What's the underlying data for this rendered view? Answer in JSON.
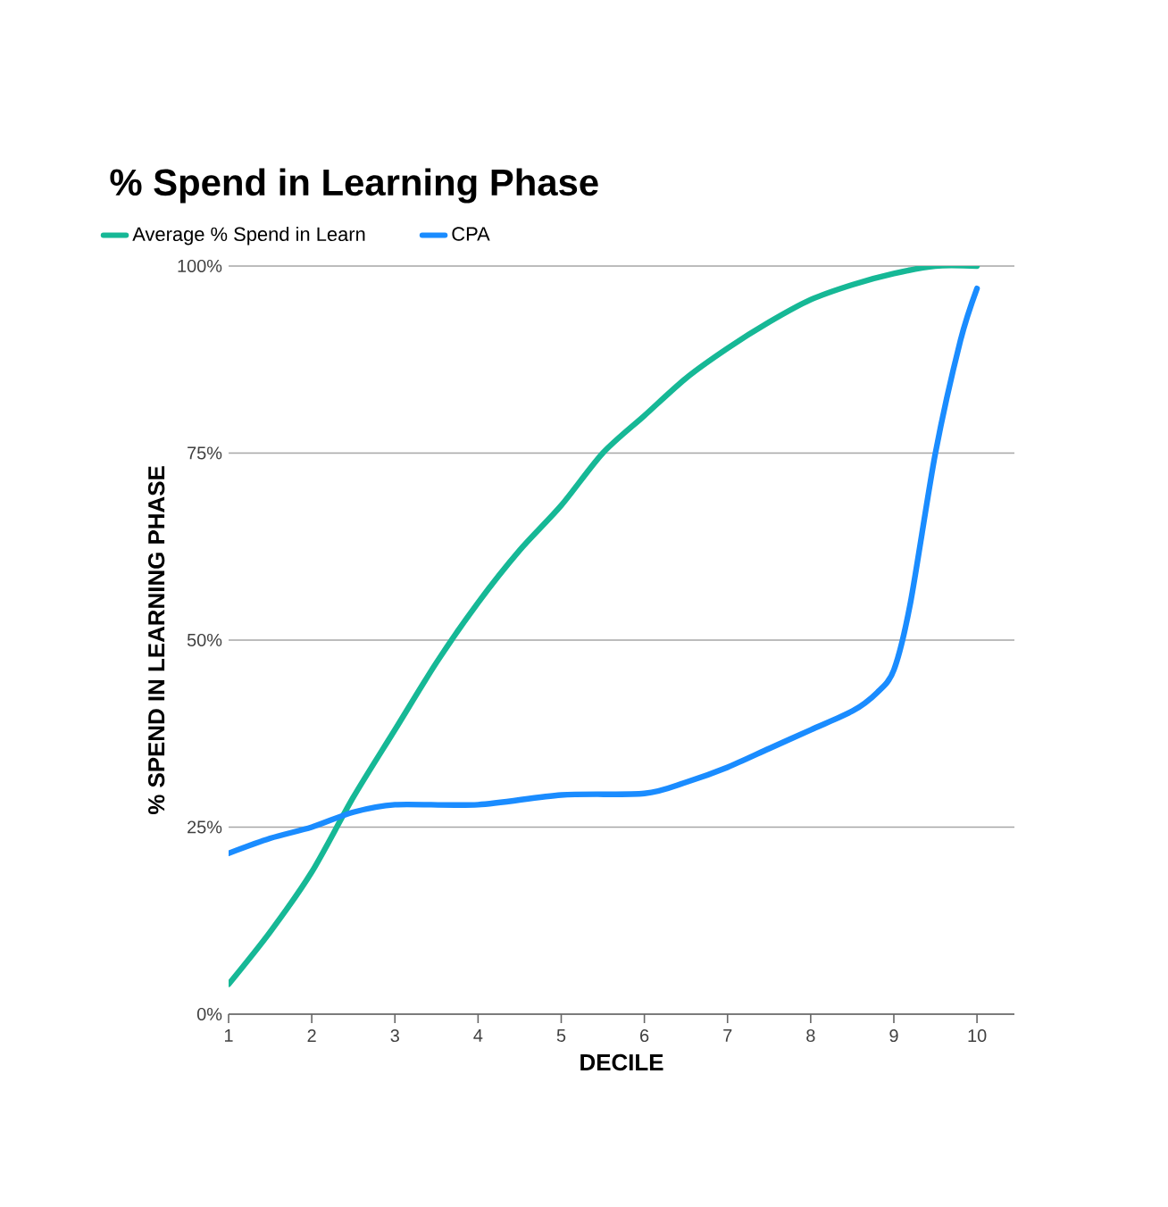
{
  "chart_data": {
    "type": "line",
    "title": "% Spend in Learning Phase",
    "xlabel": "DECILE",
    "ylabel": "% SPEND IN LEARNING PHASE",
    "series": [
      {
        "name": "Average % Spend in Learn",
        "color": "#16b896",
        "x": [
          1,
          1.5,
          2,
          2.5,
          3,
          3.5,
          4,
          4.5,
          5,
          5.5,
          6,
          6.5,
          7,
          7.5,
          8,
          8.5,
          9,
          9.5,
          10
        ],
        "values": [
          4,
          11,
          19,
          29,
          38,
          47,
          55,
          62,
          68,
          75,
          80,
          85,
          89,
          92.5,
          95.5,
          97.5,
          99,
          100,
          100
        ]
      },
      {
        "name": "CPA",
        "color": "#1a8cff",
        "x": [
          1,
          1.5,
          2,
          2.5,
          3,
          4,
          5,
          6,
          6.5,
          7,
          7.5,
          8,
          8.5,
          8.8,
          9,
          9.2,
          9.5,
          9.8,
          10
        ],
        "values": [
          21.5,
          23.5,
          25,
          27,
          28,
          28,
          29.3,
          29.5,
          31,
          33,
          35.5,
          38,
          40.5,
          43,
          46,
          55,
          75,
          90,
          97
        ]
      }
    ],
    "xlim": [
      1,
      10.45
    ],
    "ylim": [
      0,
      100
    ],
    "xticks": [
      1,
      2,
      3,
      4,
      5,
      6,
      7,
      8,
      9,
      10
    ],
    "yticks": [
      {
        "value": 0,
        "label": "0%"
      },
      {
        "value": 25,
        "label": "25%"
      },
      {
        "value": 50,
        "label": "50%"
      },
      {
        "value": 75,
        "label": "75%"
      },
      {
        "value": 100,
        "label": "100%"
      }
    ],
    "grid": "y",
    "legend": "top left",
    "marker": "none",
    "line_style": "solid"
  }
}
